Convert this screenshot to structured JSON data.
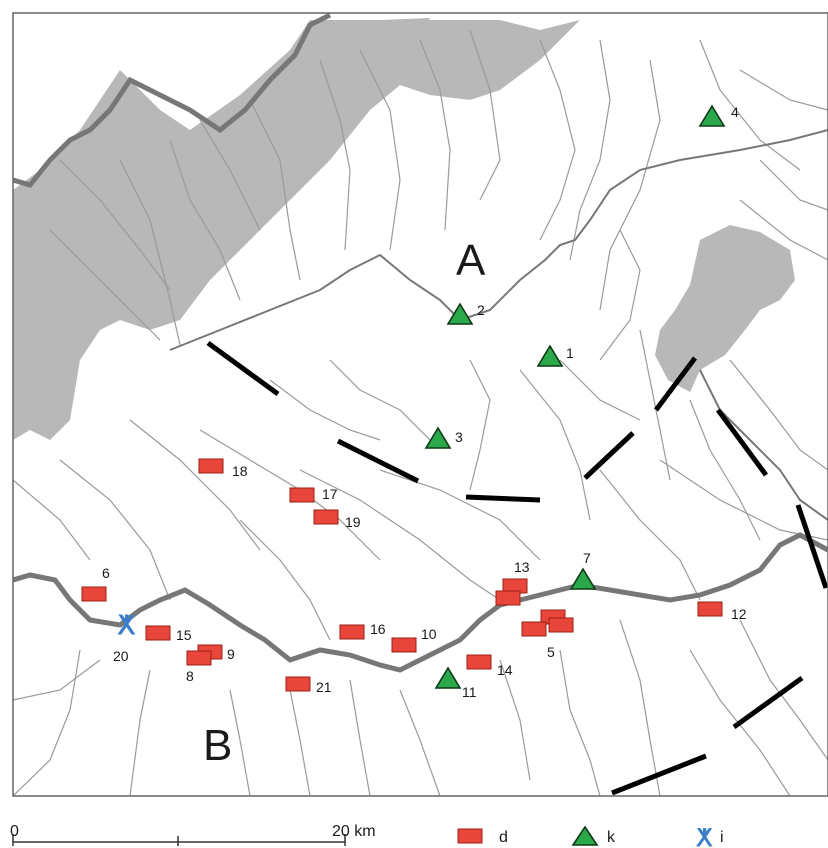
{
  "region_labels": {
    "a": "A",
    "b": "B"
  },
  "scale_bar": {
    "start_label": "0",
    "end_label": "20 km"
  },
  "legend": {
    "d": {
      "label": "d",
      "color": "#e8463a"
    },
    "k": {
      "label": "k",
      "color": "#2aa84a"
    },
    "i": {
      "label": "i",
      "color": "#3a7fc8"
    }
  },
  "colors": {
    "upland": "#b8b8b8",
    "river": "#777777",
    "tributary": "#9a9a9a",
    "fault": "#000000",
    "frame": "#666666"
  },
  "sites_d": [
    "18",
    "17",
    "19",
    "6",
    "15",
    "9",
    "8",
    "16",
    "10",
    "13",
    "5",
    "14",
    "21",
    "12"
  ],
  "sites_k": [
    "4",
    "2",
    "1",
    "3",
    "7",
    "11"
  ],
  "sites_i": [
    "20"
  ]
}
